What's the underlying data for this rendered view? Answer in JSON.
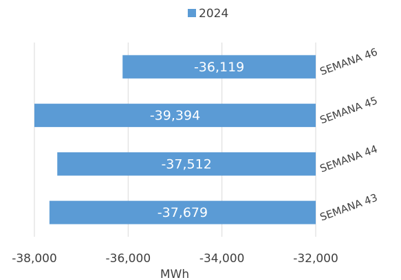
{
  "chart_data": {
    "type": "bar",
    "orientation": "horizontal",
    "categories": [
      "SEMANA 46",
      "SEMANA 45",
      "SEMANA 44",
      "SEMANA 43"
    ],
    "series": [
      {
        "name": "2024",
        "color": "#5b9bd5",
        "values": [
          -36119,
          -39394,
          -37512,
          -37679
        ],
        "value_labels": [
          "-36,119",
          "-39,394",
          "-37,512",
          "-37,679"
        ]
      }
    ],
    "xlim": [
      -38000,
      -32000
    ],
    "xticks": [
      {
        "value": -38000,
        "label": "-38,000"
      },
      {
        "value": -36000,
        "label": "-36,000"
      },
      {
        "value": -34000,
        "label": "-34,000"
      },
      {
        "value": -32000,
        "label": "-32,000"
      }
    ],
    "xlabel": "MWh",
    "grid": true,
    "legend": "top"
  }
}
